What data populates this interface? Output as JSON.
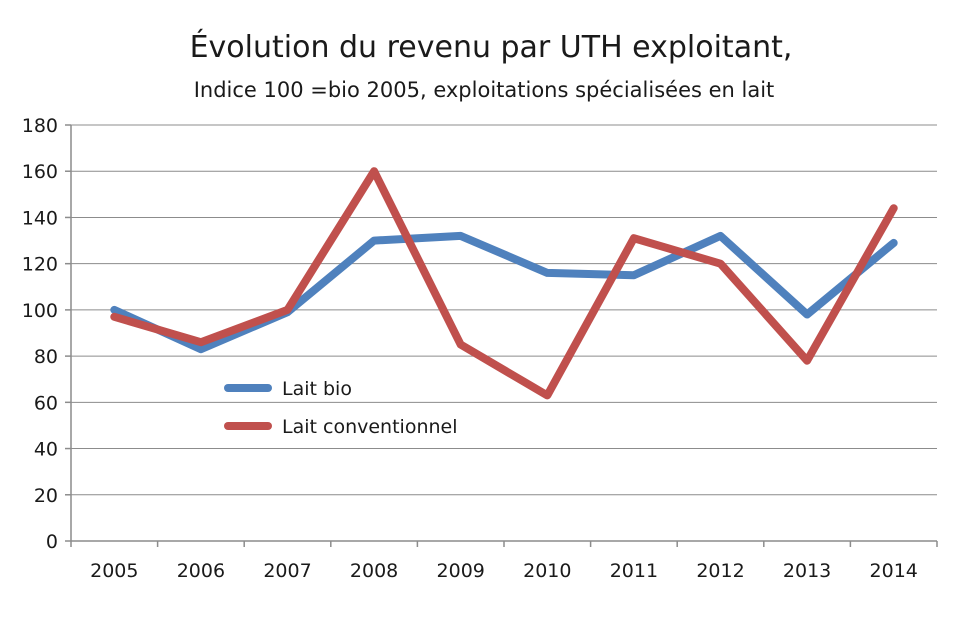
{
  "chart_data": {
    "type": "line",
    "title": "Évolution du revenu par UTH exploitant,",
    "subtitle": "Indice 100 =bio 2005, exploitations spécialisées en lait",
    "xlabel": "",
    "ylabel": "",
    "x": [
      "2005",
      "2006",
      "2007",
      "2008",
      "2009",
      "2010",
      "2011",
      "2012",
      "2013",
      "2014"
    ],
    "ylim": [
      0,
      180
    ],
    "yticks": [
      0,
      20,
      40,
      60,
      80,
      100,
      120,
      140,
      160,
      180
    ],
    "grid": true,
    "legend_position": "center-left",
    "series": [
      {
        "name": "Lait bio",
        "color": "#4f81bd",
        "values": [
          100,
          83,
          99,
          130,
          132,
          116,
          115,
          132,
          98,
          129
        ]
      },
      {
        "name": "Lait conventionnel",
        "color": "#c0504d",
        "values": [
          97,
          86,
          100,
          160,
          85,
          63,
          131,
          120,
          78,
          144
        ]
      }
    ]
  }
}
